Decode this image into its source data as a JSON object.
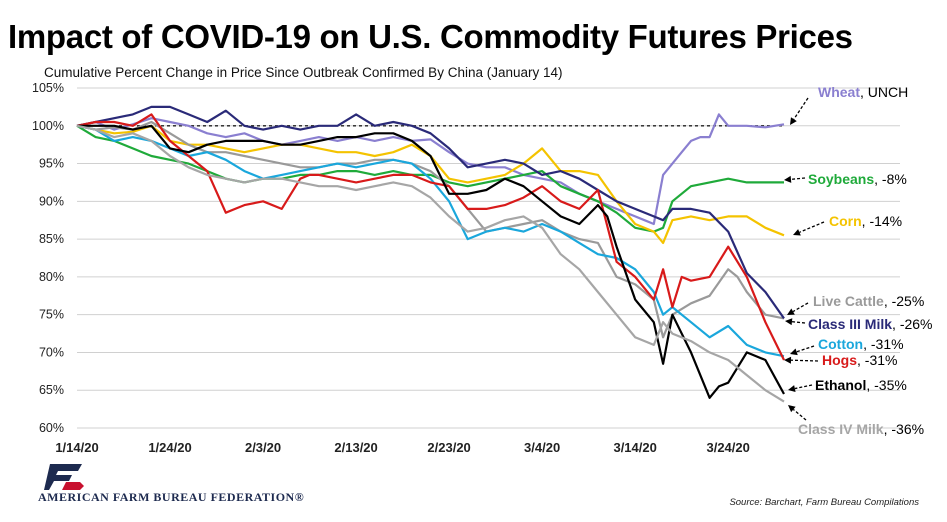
{
  "title": "Impact of COVID-19 on U.S. Commodity Futures Prices",
  "subtitle": "Cumulative Percent Change in Price Since Outbreak Confirmed By China (January 14)",
  "source": "Source: Barchart, Farm Bureau Compilations",
  "organization": "AMERICAN FARM BUREAU FEDERATION®",
  "chart_data": {
    "type": "line",
    "ylim": [
      60,
      105
    ],
    "yticks": [
      60,
      65,
      70,
      75,
      80,
      85,
      90,
      95,
      100,
      105
    ],
    "ytick_labels": [
      "60%",
      "65%",
      "70%",
      "75%",
      "80%",
      "85%",
      "90%",
      "95%",
      "100%",
      "105%"
    ],
    "xtick_labels": [
      "1/14/20",
      "1/24/20",
      "2/3/20",
      "2/13/20",
      "2/23/20",
      "3/4/20",
      "3/14/20",
      "3/24/20"
    ],
    "xtick_days": [
      0,
      10,
      20,
      30,
      40,
      50,
      60,
      70
    ],
    "x_unit": "days since 1/14/20",
    "baseline": 100,
    "series": [
      {
        "name": "Wheat",
        "change": "UNCH",
        "color": "#8a7fd0",
        "x": [
          0,
          2,
          4,
          6,
          8,
          10,
          12,
          14,
          16,
          18,
          20,
          22,
          24,
          26,
          28,
          30,
          32,
          34,
          36,
          38,
          40,
          42,
          44,
          46,
          48,
          50,
          52,
          54,
          56,
          57,
          58,
          59,
          60,
          61,
          62,
          63,
          64,
          65,
          66,
          67,
          68,
          69,
          70,
          72,
          74,
          76
        ],
        "y": [
          100,
          100.5,
          99.5,
          100.2,
          101,
          100.5,
          100,
          99,
          98.5,
          99,
          98,
          97.5,
          98,
          98.5,
          98,
          98.5,
          98,
          98.5,
          98,
          98.2,
          96.5,
          95,
          94.5,
          94.5,
          93.5,
          93,
          92.5,
          91,
          90,
          89.5,
          89,
          88.5,
          88,
          87.5,
          87,
          93.5,
          95,
          96.5,
          98,
          98.5,
          98.5,
          101.5,
          100,
          100,
          99.8,
          100.2
        ]
      },
      {
        "name": "Soybeans",
        "change": "-8%",
        "color": "#1faa3a",
        "x": [
          0,
          2,
          4,
          6,
          8,
          10,
          12,
          14,
          16,
          18,
          20,
          22,
          24,
          26,
          28,
          30,
          32,
          34,
          36,
          38,
          40,
          42,
          44,
          46,
          48,
          50,
          52,
          54,
          56,
          58,
          60,
          62,
          63,
          64,
          66,
          68,
          70,
          72,
          74,
          76
        ],
        "y": [
          100,
          98.5,
          98,
          97,
          96,
          95.5,
          95,
          94,
          93,
          92.5,
          93,
          93,
          93.5,
          93.5,
          94,
          94,
          93.5,
          94,
          93.5,
          93.5,
          92.5,
          92,
          92.5,
          93,
          93.5,
          94,
          92,
          91,
          90,
          88.5,
          86.5,
          86,
          86.5,
          90,
          92,
          92.5,
          93,
          92.5,
          92.5,
          92.5
        ]
      },
      {
        "name": "Corn",
        "change": "-14%",
        "color": "#f4c300",
        "x": [
          0,
          2,
          4,
          6,
          8,
          10,
          12,
          14,
          16,
          18,
          20,
          22,
          24,
          26,
          28,
          30,
          32,
          34,
          36,
          38,
          40,
          42,
          44,
          46,
          48,
          50,
          52,
          54,
          56,
          58,
          60,
          62,
          63,
          64,
          66,
          68,
          70,
          72,
          74,
          76
        ],
        "y": [
          100,
          99.5,
          99,
          99.2,
          100,
          98,
          97.5,
          97.5,
          97,
          96.5,
          97,
          97.5,
          97.5,
          97,
          96.5,
          96.5,
          96,
          96.5,
          97.5,
          96,
          93,
          92.5,
          93,
          93.5,
          95,
          97,
          94,
          94,
          93.5,
          90,
          87,
          86,
          84.5,
          87.5,
          88,
          87.5,
          88,
          88,
          86.5,
          85.5
        ]
      },
      {
        "name": "Live Cattle",
        "change": "-25%",
        "color": "#9a9a9a",
        "x": [
          0,
          2,
          4,
          6,
          8,
          10,
          12,
          14,
          16,
          18,
          20,
          22,
          24,
          26,
          28,
          30,
          32,
          34,
          36,
          38,
          40,
          42,
          44,
          46,
          48,
          50,
          52,
          54,
          56,
          58,
          60,
          62,
          63,
          64,
          66,
          68,
          70,
          71,
          72,
          74,
          76
        ],
        "y": [
          100,
          99.5,
          99.8,
          99.5,
          100.5,
          99,
          97.5,
          96.5,
          96.5,
          96,
          95.5,
          95,
          94.5,
          94.5,
          95,
          95,
          95.5,
          95.5,
          95,
          94,
          92,
          89,
          86,
          86.5,
          87,
          87.5,
          86,
          85,
          84.5,
          80,
          79,
          77,
          72,
          75,
          76.5,
          77.5,
          81,
          80,
          78,
          75,
          74.5
        ]
      },
      {
        "name": "Class III Milk",
        "change": "-26%",
        "color": "#2a2a78",
        "x": [
          0,
          2,
          4,
          6,
          8,
          10,
          12,
          14,
          16,
          18,
          20,
          22,
          24,
          26,
          28,
          30,
          32,
          34,
          36,
          38,
          40,
          42,
          44,
          46,
          48,
          50,
          52,
          54,
          56,
          58,
          60,
          62,
          63,
          64,
          66,
          68,
          70,
          72,
          74,
          76
        ],
        "y": [
          100,
          100.5,
          101,
          101.5,
          102.5,
          102.5,
          101.5,
          100.5,
          102,
          100,
          99.5,
          100,
          99.5,
          100,
          100,
          101.5,
          100,
          100.5,
          100,
          99,
          97,
          94.5,
          95,
          95.5,
          95,
          93.5,
          94,
          93,
          91.5,
          90,
          89,
          88,
          87.5,
          89,
          89,
          88.5,
          86,
          80.5,
          78,
          74.5
        ]
      },
      {
        "name": "Cotton",
        "change": "-31%",
        "color": "#1aa7dc",
        "x": [
          0,
          2,
          4,
          6,
          8,
          10,
          12,
          14,
          16,
          18,
          20,
          22,
          24,
          26,
          28,
          30,
          32,
          34,
          36,
          38,
          40,
          42,
          44,
          46,
          48,
          50,
          52,
          54,
          56,
          58,
          60,
          62,
          63,
          64,
          66,
          68,
          70,
          72,
          74,
          76
        ],
        "y": [
          100,
          99.5,
          98,
          98.5,
          98,
          97,
          96,
          96.5,
          95.5,
          94,
          93,
          93.5,
          94,
          94.5,
          95,
          94.5,
          95,
          95.5,
          95,
          93,
          90,
          85,
          86,
          86.5,
          86,
          87,
          86,
          84.5,
          83,
          82.5,
          81,
          78,
          75,
          76,
          74,
          72,
          73.5,
          71,
          70,
          69.5
        ]
      },
      {
        "name": "Hogs",
        "change": "-31%",
        "color": "#d81a1a",
        "x": [
          0,
          2,
          4,
          6,
          8,
          10,
          12,
          14,
          16,
          17,
          18,
          20,
          22,
          24,
          25,
          26,
          28,
          30,
          32,
          34,
          36,
          38,
          40,
          42,
          44,
          46,
          48,
          50,
          52,
          54,
          56,
          58,
          60,
          62,
          63,
          64,
          65,
          66,
          68,
          69,
          70,
          72,
          74,
          76
        ],
        "y": [
          100,
          100.5,
          100.5,
          100,
          101.5,
          98,
          96,
          94,
          88.5,
          89,
          89.5,
          90,
          89,
          93,
          93.5,
          93.5,
          93,
          92.5,
          93,
          93.5,
          93.5,
          92.5,
          92,
          89,
          89,
          89.5,
          90.5,
          92,
          90,
          89,
          91.5,
          82,
          80,
          77,
          81,
          76,
          80,
          79.5,
          80,
          82,
          84,
          80,
          74,
          69
        ]
      },
      {
        "name": "Ethanol",
        "change": "-35%",
        "color": "#000000",
        "x": [
          0,
          2,
          4,
          6,
          8,
          10,
          12,
          14,
          16,
          18,
          20,
          22,
          24,
          26,
          28,
          30,
          32,
          34,
          36,
          38,
          40,
          42,
          44,
          46,
          48,
          50,
          52,
          54,
          56,
          57,
          58,
          60,
          62,
          63,
          64,
          66,
          68,
          69,
          70,
          72,
          74,
          76
        ],
        "y": [
          100,
          100,
          100,
          99.5,
          100,
          97,
          96.5,
          97.5,
          98,
          98,
          98,
          97.5,
          97.5,
          98,
          98.5,
          98.5,
          99,
          99,
          98,
          96,
          91,
          91,
          91.5,
          93,
          92,
          90,
          88,
          87,
          89.5,
          88,
          84,
          77,
          74,
          68.5,
          75,
          70,
          64,
          65.5,
          66,
          70,
          69,
          64.5
        ]
      },
      {
        "name": "Class IV Milk",
        "change": "-36%",
        "color": "#a6a6a6",
        "x": [
          0,
          2,
          4,
          6,
          8,
          10,
          12,
          14,
          16,
          18,
          20,
          22,
          24,
          26,
          28,
          30,
          32,
          34,
          36,
          38,
          40,
          42,
          44,
          46,
          48,
          50,
          52,
          54,
          56,
          58,
          60,
          62,
          63,
          64,
          66,
          68,
          70,
          72,
          74,
          76
        ],
        "y": [
          100,
          99.5,
          98.5,
          99,
          98,
          96,
          94.5,
          93.5,
          93,
          92.5,
          93,
          93,
          92.5,
          92,
          92,
          91.5,
          92,
          92.5,
          92,
          90.5,
          88,
          86,
          86.5,
          87.5,
          88,
          86.5,
          83,
          81,
          78,
          75,
          72,
          71,
          74,
          72.5,
          71.5,
          70,
          69,
          67,
          65,
          63.5
        ]
      }
    ]
  }
}
